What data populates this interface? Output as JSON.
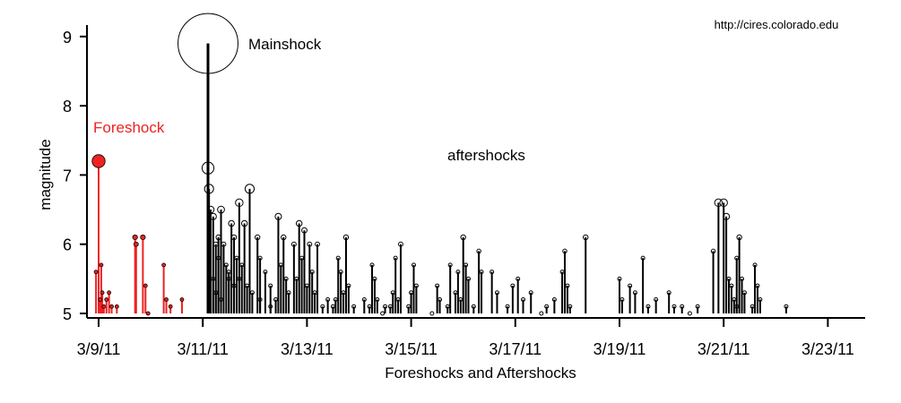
{
  "chart_data": {
    "type": "scatter",
    "title": "",
    "xlabel": "Foreshocks and Aftershocks",
    "ylabel": "magnitude",
    "source_text": "http://cires.colorado.edu",
    "x_ticks": [
      "3/9/11",
      "3/11/11",
      "3/13/11",
      "3/15/11",
      "3/17/11",
      "3/19/11",
      "3/21/11",
      "3/23/11"
    ],
    "y_ticks": [
      "5",
      "6",
      "7",
      "8",
      "9"
    ],
    "xlim_days_from_3_9": [
      -0.5,
      14.8
    ],
    "ylim": [
      5,
      9.3
    ],
    "annotations": {
      "mainshock": "Mainshock",
      "foreshock": "Foreshock",
      "aftershocks": "aftershocks"
    },
    "colors": {
      "foreshock": "#ee2222",
      "aftershock": "#000000",
      "axis": "#000000"
    },
    "series": [
      {
        "name": "Foreshocks",
        "points": [
          [
            0.0,
            7.2
          ],
          [
            -0.05,
            5.6
          ],
          [
            0.05,
            5.7
          ],
          [
            0.07,
            5.3
          ],
          [
            0.03,
            5.2
          ],
          [
            0.1,
            5.1
          ],
          [
            0.2,
            5.3
          ],
          [
            0.25,
            5.1
          ],
          [
            0.15,
            5.2
          ],
          [
            0.35,
            5.1
          ],
          [
            0.7,
            6.1
          ],
          [
            0.72,
            6.0
          ],
          [
            0.85,
            6.1
          ],
          [
            0.9,
            5.4
          ],
          [
            0.95,
            5.0
          ],
          [
            1.25,
            5.7
          ],
          [
            1.3,
            5.2
          ],
          [
            1.38,
            5.1
          ],
          [
            1.6,
            5.2
          ]
        ]
      },
      {
        "name": "Mainshock",
        "points": [
          [
            2.1,
            8.9
          ]
        ]
      },
      {
        "name": "Aftershocks",
        "points": [
          [
            2.1,
            7.1
          ],
          [
            2.12,
            6.8
          ],
          [
            2.15,
            6.5
          ],
          [
            2.2,
            6.4
          ],
          [
            2.25,
            6.0
          ],
          [
            2.3,
            6.1
          ],
          [
            2.3,
            5.8
          ],
          [
            2.35,
            6.5
          ],
          [
            2.4,
            6.0
          ],
          [
            2.45,
            5.7
          ],
          [
            2.5,
            5.5
          ],
          [
            2.55,
            6.3
          ],
          [
            2.6,
            6.1
          ],
          [
            2.65,
            5.8
          ],
          [
            2.7,
            6.6
          ],
          [
            2.8,
            6.3
          ],
          [
            2.9,
            6.8
          ],
          [
            2.2,
            5.5
          ],
          [
            2.25,
            5.3
          ],
          [
            2.35,
            5.2
          ],
          [
            2.5,
            5.6
          ],
          [
            2.6,
            5.4
          ],
          [
            2.7,
            5.5
          ],
          [
            2.75,
            5.7
          ],
          [
            2.85,
            5.4
          ],
          [
            2.95,
            5.3
          ],
          [
            3.05,
            6.1
          ],
          [
            3.1,
            5.8
          ],
          [
            3.2,
            5.6
          ],
          [
            3.3,
            5.4
          ],
          [
            3.5,
            5.7
          ],
          [
            3.6,
            5.5
          ],
          [
            3.1,
            5.2
          ],
          [
            3.3,
            5.1
          ],
          [
            3.4,
            5.2
          ],
          [
            3.65,
            5.3
          ],
          [
            3.45,
            6.4
          ],
          [
            3.55,
            6.1
          ],
          [
            3.85,
            6.3
          ],
          [
            3.95,
            6.2
          ],
          [
            4.05,
            6.0
          ],
          [
            3.75,
            6.0
          ],
          [
            3.9,
            5.8
          ],
          [
            3.8,
            5.5
          ],
          [
            4.2,
            6.0
          ],
          [
            4.1,
            5.6
          ],
          [
            4.0,
            5.4
          ],
          [
            4.15,
            5.3
          ],
          [
            4.3,
            5.1
          ],
          [
            4.4,
            5.2
          ],
          [
            4.5,
            5.1
          ],
          [
            4.6,
            5.8
          ],
          [
            4.65,
            5.6
          ],
          [
            4.75,
            6.1
          ],
          [
            4.8,
            5.4
          ],
          [
            4.7,
            5.3
          ],
          [
            4.55,
            5.2
          ],
          [
            4.9,
            5.1
          ],
          [
            5.1,
            5.2
          ],
          [
            5.25,
            5.7
          ],
          [
            5.3,
            5.5
          ],
          [
            5.2,
            5.1
          ],
          [
            5.35,
            5.2
          ],
          [
            5.45,
            5.0
          ],
          [
            5.5,
            5.1
          ],
          [
            5.65,
            5.3
          ],
          [
            5.7,
            5.8
          ],
          [
            5.8,
            6.0
          ],
          [
            5.75,
            5.2
          ],
          [
            5.6,
            5.1
          ],
          [
            6.0,
            5.3
          ],
          [
            6.05,
            5.7
          ],
          [
            6.1,
            5.4
          ],
          [
            5.95,
            5.1
          ],
          [
            6.4,
            5.0
          ],
          [
            6.5,
            5.4
          ],
          [
            6.55,
            5.2
          ],
          [
            6.7,
            5.1
          ],
          [
            6.75,
            5.7
          ],
          [
            6.85,
            5.3
          ],
          [
            6.9,
            5.6
          ],
          [
            7.0,
            6.1
          ],
          [
            7.05,
            5.7
          ],
          [
            7.1,
            5.5
          ],
          [
            6.95,
            5.2
          ],
          [
            7.3,
            5.9
          ],
          [
            7.35,
            5.6
          ],
          [
            7.55,
            5.6
          ],
          [
            7.2,
            5.1
          ],
          [
            7.65,
            5.3
          ],
          [
            7.85,
            5.1
          ],
          [
            7.95,
            5.4
          ],
          [
            8.05,
            5.5
          ],
          [
            8.15,
            5.2
          ],
          [
            8.3,
            5.3
          ],
          [
            8.5,
            5.0
          ],
          [
            8.6,
            5.1
          ],
          [
            8.75,
            5.2
          ],
          [
            8.9,
            5.6
          ],
          [
            8.95,
            5.9
          ],
          [
            9.0,
            5.4
          ],
          [
            9.05,
            5.1
          ],
          [
            9.35,
            6.1
          ],
          [
            10.0,
            5.5
          ],
          [
            10.05,
            5.2
          ],
          [
            10.2,
            5.4
          ],
          [
            10.3,
            5.3
          ],
          [
            10.45,
            5.8
          ],
          [
            10.55,
            5.1
          ],
          [
            10.7,
            5.2
          ],
          [
            10.95,
            5.3
          ],
          [
            11.05,
            5.1
          ],
          [
            11.2,
            5.1
          ],
          [
            11.35,
            5.0
          ],
          [
            11.5,
            5.1
          ],
          [
            11.8,
            5.9
          ],
          [
            11.9,
            6.6
          ],
          [
            12.0,
            6.6
          ],
          [
            12.05,
            6.4
          ],
          [
            12.1,
            5.5
          ],
          [
            12.15,
            5.4
          ],
          [
            12.25,
            5.8
          ],
          [
            12.3,
            6.1
          ],
          [
            12.35,
            5.5
          ],
          [
            12.2,
            5.2
          ],
          [
            12.4,
            5.3
          ],
          [
            12.25,
            5.1
          ],
          [
            12.6,
            5.7
          ],
          [
            12.65,
            5.4
          ],
          [
            12.7,
            5.2
          ],
          [
            12.55,
            5.1
          ],
          [
            13.2,
            5.1
          ]
        ]
      }
    ]
  }
}
